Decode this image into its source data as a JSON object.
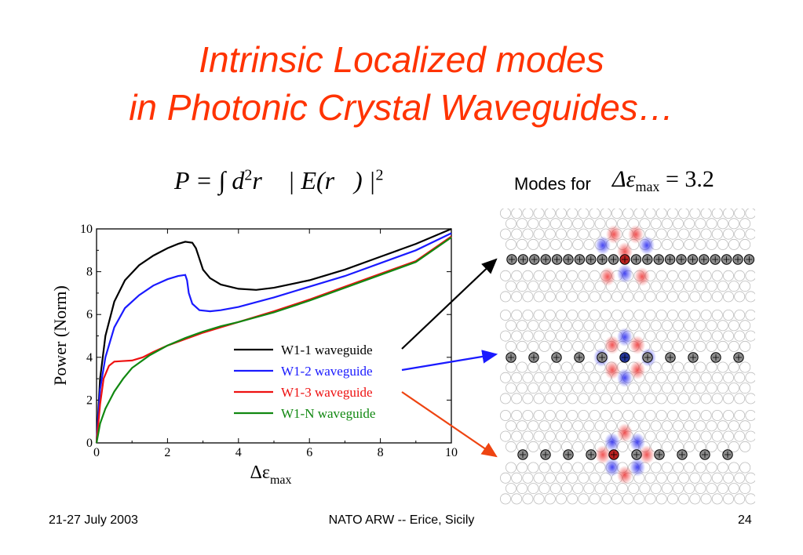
{
  "slide": {
    "title_line1": "Intrinsic Localized modes",
    "title_line2": "in Photonic Crystal Waveguides…",
    "formula": {
      "P": "P",
      "eq": " = ∫ d",
      "sq": "2",
      "r": "r⃗",
      "E": " | E(r⃗) |",
      "pow": "2"
    },
    "modes_label": "Modes for",
    "modes_equation": {
      "delta": "Δε",
      "sub": "max",
      "value": " = 3.2"
    },
    "footer": {
      "date": "21-27 July 2003",
      "event": "NATO ARW --  Erice, Sicily",
      "page": "24"
    }
  },
  "colors": {
    "title": "#ff3300",
    "w1_1": "#000000",
    "w1_2": "#1a1aff",
    "w1_3": "#ee1111",
    "w1_N": "#118811"
  },
  "chart_data": {
    "type": "line",
    "xlabel": "Δε",
    "xlabel_sub": "max",
    "ylabel": "Power   (Norm)",
    "xlim": [
      0,
      10
    ],
    "ylim": [
      0,
      10
    ],
    "xticks": [
      0,
      2,
      4,
      6,
      8,
      10
    ],
    "yticks": [
      0,
      2,
      4,
      6,
      8,
      10
    ],
    "grid": false,
    "legend_position": "center-right",
    "series": [
      {
        "name": "W1-1 waveguide",
        "color": "#000000",
        "x": [
          0,
          0.1,
          0.25,
          0.5,
          0.8,
          1.2,
          1.6,
          2.0,
          2.3,
          2.5,
          2.7,
          2.8,
          2.9,
          3.0,
          3.2,
          3.5,
          4.0,
          4.5,
          5.0,
          6.0,
          7.0,
          8.0,
          9.0,
          10.0
        ],
        "y": [
          0,
          3.0,
          5.0,
          6.6,
          7.6,
          8.3,
          8.75,
          9.1,
          9.3,
          9.4,
          9.35,
          9.1,
          8.6,
          8.1,
          7.7,
          7.4,
          7.2,
          7.15,
          7.25,
          7.6,
          8.1,
          8.7,
          9.3,
          10.0
        ]
      },
      {
        "name": "W1-2 waveguide",
        "color": "#1a1aff",
        "x": [
          0,
          0.1,
          0.25,
          0.5,
          0.8,
          1.2,
          1.6,
          2.0,
          2.3,
          2.5,
          2.55,
          2.6,
          2.7,
          2.9,
          3.2,
          3.5,
          4.0,
          5.0,
          6.0,
          7.0,
          8.0,
          9.0,
          10.0
        ],
        "y": [
          0,
          2.5,
          4.0,
          5.4,
          6.3,
          6.9,
          7.35,
          7.65,
          7.8,
          7.85,
          7.6,
          7.0,
          6.5,
          6.2,
          6.15,
          6.2,
          6.35,
          6.8,
          7.3,
          7.8,
          8.4,
          9.0,
          9.8
        ]
      },
      {
        "name": "W1-3 waveguide",
        "color": "#ee1111",
        "x": [
          0,
          0.1,
          0.2,
          0.35,
          0.5,
          0.7,
          1.0,
          1.3,
          1.6,
          2.0,
          2.5,
          3.0,
          3.5,
          4.0,
          5.0,
          6.0,
          7.0,
          8.0,
          9.0,
          10.0
        ],
        "y": [
          0,
          1.8,
          3.0,
          3.6,
          3.8,
          3.82,
          3.85,
          4.0,
          4.25,
          4.55,
          4.85,
          5.15,
          5.4,
          5.65,
          6.15,
          6.7,
          7.3,
          7.9,
          8.5,
          9.65
        ]
      },
      {
        "name": "W1-N waveguide",
        "color": "#118811",
        "x": [
          0,
          0.1,
          0.25,
          0.5,
          0.75,
          1.0,
          1.5,
          2.0,
          2.5,
          3.0,
          3.5,
          4.0,
          5.0,
          6.0,
          7.0,
          8.0,
          9.0,
          10.0
        ],
        "y": [
          0,
          0.9,
          1.6,
          2.4,
          3.0,
          3.5,
          4.1,
          4.55,
          4.9,
          5.2,
          5.45,
          5.65,
          6.1,
          6.65,
          7.25,
          7.85,
          8.45,
          9.6
        ]
      }
    ]
  }
}
